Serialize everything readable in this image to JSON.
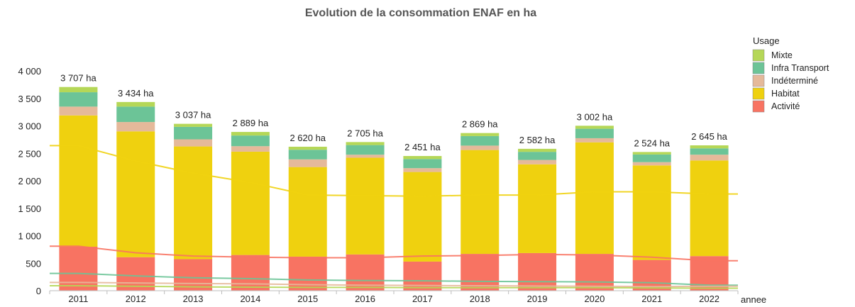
{
  "chart_data": {
    "type": "bar",
    "stacked": true,
    "title": "Evolution de la consommation ENAF en ha",
    "xlabel": "annee",
    "ylabel": "",
    "ylim": [
      0,
      4000
    ],
    "yticks": [
      0,
      500,
      1000,
      1500,
      2000,
      2500,
      3000,
      3500,
      4000
    ],
    "ytick_labels": [
      "0",
      "500",
      "1 000",
      "1 500",
      "2 000",
      "2 500",
      "3 000",
      "3 500",
      "4 000"
    ],
    "categories": [
      "2011",
      "2012",
      "2013",
      "2014",
      "2015",
      "2016",
      "2017",
      "2018",
      "2019",
      "2020",
      "2021",
      "2022"
    ],
    "legend_title": "Usage",
    "legend_position": "right",
    "series": [
      {
        "name": "Activité",
        "color": "#f87362",
        "values": [
          800,
          610,
          575,
          650,
          620,
          660,
          530,
          670,
          685,
          670,
          560,
          630
        ]
      },
      {
        "name": "Habitat",
        "color": "#efd10f",
        "values": [
          2390,
          2290,
          2050,
          1880,
          1630,
          1760,
          1630,
          1890,
          1615,
          2030,
          1720,
          1740
        ]
      },
      {
        "name": "Indéterminé",
        "color": "#e5b99a",
        "values": [
          160,
          170,
          130,
          100,
          140,
          55,
          70,
          80,
          80,
          75,
          60,
          105
        ]
      },
      {
        "name": "Infra Transport",
        "color": "#6cc497",
        "values": [
          262,
          280,
          227,
          194,
          175,
          175,
          166,
          174,
          147,
          172,
          139,
          115
        ]
      },
      {
        "name": "Mixte",
        "color": "#b5d757",
        "values": [
          95,
          84,
          55,
          65,
          55,
          55,
          55,
          55,
          55,
          55,
          45,
          55
        ]
      }
    ],
    "totals": [
      3707,
      3434,
      3037,
      2889,
      2620,
      2705,
      2451,
      2869,
      2582,
      3002,
      2524,
      2645
    ],
    "total_labels": [
      "3 707 ha",
      "3 434 ha",
      "3 037 ha",
      "2 889 ha",
      "2 620 ha",
      "2 705 ha",
      "2 451 ha",
      "2 869 ha",
      "2 582 ha",
      "3 002 ha",
      "2 524 ha",
      "2 645 ha"
    ],
    "trend_lines": [
      {
        "series": "Habitat",
        "color": "#efd10f",
        "values": [
          2640,
          2360,
          2140,
          1970,
          1740,
          1730,
          1720,
          1740,
          1740,
          1800,
          1800,
          1760
        ]
      },
      {
        "series": "Activité",
        "color": "#f87362",
        "values": [
          810,
          690,
          630,
          610,
          600,
          600,
          630,
          640,
          660,
          650,
          610,
          545
        ]
      },
      {
        "series": "Infra Transport",
        "color": "#6cc497",
        "values": [
          315,
          270,
          235,
          220,
          195,
          185,
          180,
          170,
          165,
          160,
          145,
          100
        ]
      },
      {
        "series": "Indéterminé",
        "color": "#e5b99a",
        "values": [
          150,
          140,
          130,
          125,
          110,
          100,
          95,
          90,
          85,
          80,
          75,
          80
        ]
      },
      {
        "series": "Mixte",
        "color": "#b5d757",
        "values": [
          90,
          80,
          70,
          65,
          60,
          60,
          55,
          55,
          55,
          55,
          50,
          45
        ]
      }
    ]
  }
}
